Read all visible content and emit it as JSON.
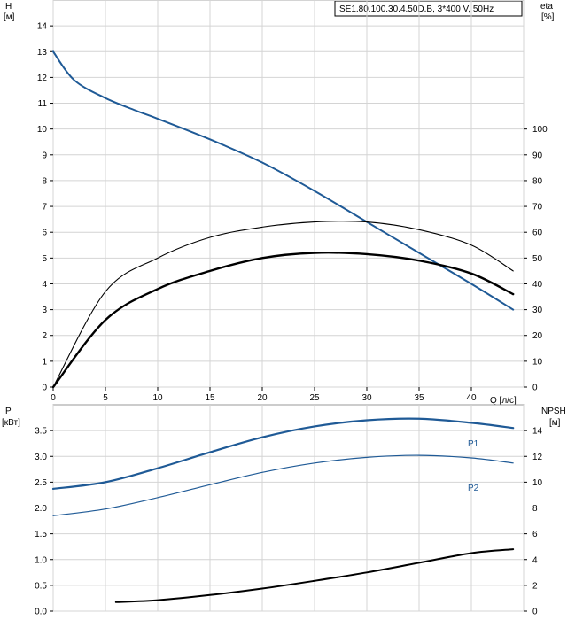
{
  "chart_data": [
    {
      "type": "line",
      "title": "SE1.80.100.30.4.50D.B, 3*400 V, 50Hz",
      "xlabel": "Q [л/с]",
      "xlim": [
        0,
        45
      ],
      "xticks": [
        "0",
        "5",
        "10",
        "15",
        "20",
        "25",
        "30",
        "35",
        "40"
      ],
      "y_left_label": [
        "H",
        "[м]"
      ],
      "y_left_lim": [
        0,
        15
      ],
      "y_left_ticks": [
        "0",
        "1",
        "2",
        "3",
        "4",
        "5",
        "6",
        "7",
        "8",
        "9",
        "10",
        "11",
        "12",
        "13",
        "14"
      ],
      "y_right_label": [
        "eta",
        "[%]"
      ],
      "y_right_lim": [
        0,
        150
      ],
      "y_right_ticks": [
        "0",
        "10",
        "20",
        "30",
        "40",
        "50",
        "60",
        "70",
        "80",
        "90",
        "100"
      ],
      "grid": true,
      "series": [
        {
          "axis": "left",
          "color": "#1f5a96",
          "x": [
            0,
            2,
            5,
            8,
            10,
            15,
            20,
            25,
            30,
            35,
            40,
            44
          ],
          "y": [
            13.0,
            11.9,
            11.2,
            10.7,
            10.4,
            9.6,
            8.7,
            7.6,
            6.4,
            5.2,
            4.0,
            3.0
          ]
        },
        {
          "axis": "right",
          "color": "#000000",
          "x": [
            0,
            5,
            10,
            15,
            20,
            25,
            30,
            35,
            40,
            44
          ],
          "y": [
            0,
            37,
            50,
            58,
            62,
            64,
            64,
            61,
            55,
            45
          ]
        },
        {
          "axis": "right",
          "color": "#000000",
          "x": [
            0,
            5,
            10,
            15,
            20,
            25,
            30,
            35,
            40,
            44
          ],
          "y": [
            0,
            26,
            38,
            45,
            50,
            52,
            51.5,
            49,
            44,
            36
          ]
        }
      ]
    },
    {
      "type": "line",
      "xlim": [
        0,
        45
      ],
      "y_left_label": [
        "P",
        "[кВт]"
      ],
      "y_left_lim": [
        0,
        4
      ],
      "y_left_ticks": [
        "0.0",
        "0.5",
        "1.0",
        "1.5",
        "2.0",
        "2.5",
        "3.0",
        "3.5"
      ],
      "y_right_label": [
        "NPSH",
        "[м]"
      ],
      "y_right_lim": [
        0,
        16
      ],
      "y_right_ticks": [
        "0",
        "2",
        "4",
        "6",
        "8",
        "10",
        "12",
        "14"
      ],
      "grid": true,
      "series": [
        {
          "name": "P1",
          "axis": "left",
          "color": "#1f5a96",
          "x": [
            0,
            5,
            10,
            15,
            20,
            25,
            30,
            35,
            40,
            44
          ],
          "y": [
            2.37,
            2.5,
            2.77,
            3.08,
            3.37,
            3.58,
            3.7,
            3.73,
            3.65,
            3.55
          ]
        },
        {
          "name": "P2",
          "axis": "left",
          "color": "#1f5a96",
          "x": [
            0,
            5,
            10,
            15,
            20,
            25,
            30,
            35,
            40,
            44
          ],
          "y": [
            1.85,
            1.98,
            2.2,
            2.45,
            2.69,
            2.87,
            2.98,
            3.02,
            2.97,
            2.87
          ]
        },
        {
          "axis": "right",
          "color": "#000000",
          "x": [
            6,
            10,
            15,
            20,
            25,
            30,
            35,
            40,
            44
          ],
          "y": [
            0.7,
            0.85,
            1.25,
            1.75,
            2.35,
            3.0,
            3.75,
            4.5,
            4.8
          ]
        }
      ]
    }
  ]
}
